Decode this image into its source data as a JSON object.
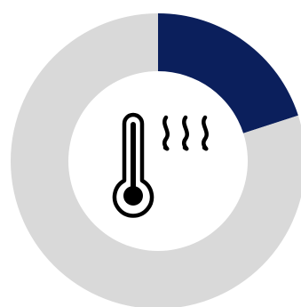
{
  "chart_data": {
    "type": "pie",
    "style": "donut",
    "values": [
      20,
      80
    ],
    "colors": [
      "#0b1f5c",
      "#d9d9d9"
    ],
    "start": "top",
    "direction": "clockwise",
    "center_icon": "thermometer-heat-icon",
    "title": "",
    "legend": "none"
  },
  "colors": {
    "highlight": "#0b1f5c",
    "remainder": "#d9d9d9",
    "icon": "#000000",
    "background": "#ffffff"
  }
}
